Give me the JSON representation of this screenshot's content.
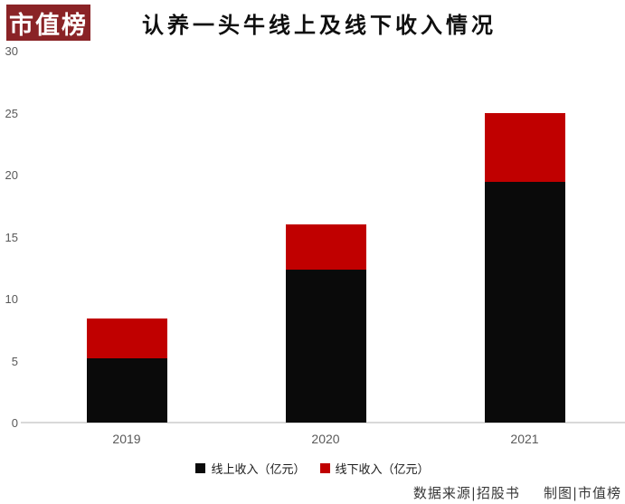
{
  "logo": {
    "text": "市值榜"
  },
  "title": "认养一头牛线上及线下收入情况",
  "colors": {
    "online": "#0a0a0a",
    "offline": "#c00000",
    "logo_bg": "#8a2326",
    "axis_line": "#d9d9d9",
    "tick_text": "#595959"
  },
  "chart_data": {
    "type": "bar",
    "stacked": true,
    "title": "认养一头牛线上及线下收入情况",
    "categories": [
      "2019",
      "2020",
      "2021"
    ],
    "series": [
      {
        "name": "线上收入（亿元）",
        "color_key": "online",
        "values": [
          5.2,
          12.3,
          19.4
        ]
      },
      {
        "name": "线下收入（亿元）",
        "color_key": "offline",
        "values": [
          3.2,
          3.7,
          5.6
        ]
      }
    ],
    "totals": [
      8.4,
      16.0,
      25.0
    ],
    "xlabel": "",
    "ylabel": "",
    "ylim": [
      0,
      30
    ],
    "yticks": [
      0,
      5,
      10,
      15,
      20,
      25,
      30
    ],
    "grid": false,
    "legend_position": "bottom"
  },
  "footer": {
    "source": "数据来源|招股书",
    "credit": "制图|市值榜"
  }
}
